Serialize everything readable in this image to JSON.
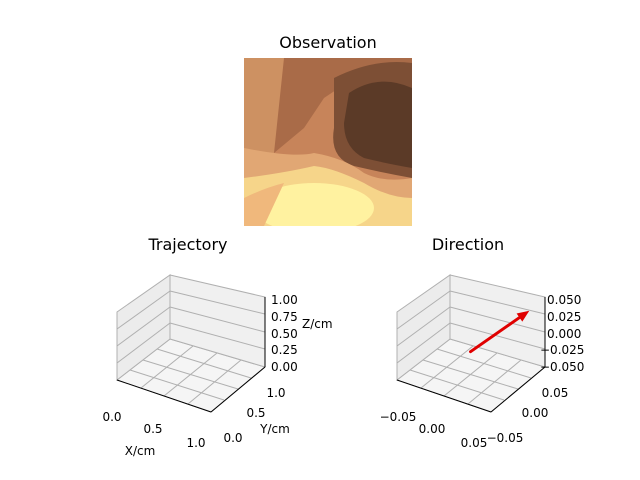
{
  "figure": {
    "observation": {
      "title": "Observation"
    },
    "trajectory": {
      "title": "Trajectory",
      "xlabel": "X/cm",
      "ylabel": "Y/cm",
      "zlabel": "Z/cm",
      "x_ticks": [
        "0.0",
        "0.5",
        "1.0"
      ],
      "y_ticks": [
        "0.0",
        "0.5",
        "1.0"
      ],
      "z_ticks": [
        "0.00",
        "0.25",
        "0.50",
        "0.75",
        "1.00"
      ]
    },
    "direction": {
      "title": "Direction",
      "x_ticks": [
        "−0.05",
        "0.00",
        "0.05"
      ],
      "y_ticks": [
        "−0.05",
        "0.00",
        "0.05"
      ],
      "z_ticks": [
        "−0.050",
        "−0.025",
        "0.000",
        "0.025",
        "0.050"
      ],
      "arrow_color": "#e00000"
    }
  },
  "chart_data": [
    {
      "type": "scatter",
      "title": "Trajectory",
      "xlabel": "X/cm",
      "ylabel": "Y/cm",
      "zlabel": "Z/cm",
      "xlim": [
        0,
        1
      ],
      "ylim": [
        0,
        1
      ],
      "zlim": [
        0,
        1
      ],
      "points": []
    },
    {
      "type": "line",
      "title": "Direction",
      "xlim": [
        -0.05,
        0.05
      ],
      "ylim": [
        -0.05,
        0.05
      ],
      "zlim": [
        -0.05,
        0.05
      ],
      "series": [
        {
          "values": [
            {
              "x": 0.0,
              "y": 0.0,
              "z": -0.015
            },
            {
              "x": 0.04,
              "y": 0.04,
              "z": 0.04
            }
          ]
        }
      ]
    }
  ]
}
